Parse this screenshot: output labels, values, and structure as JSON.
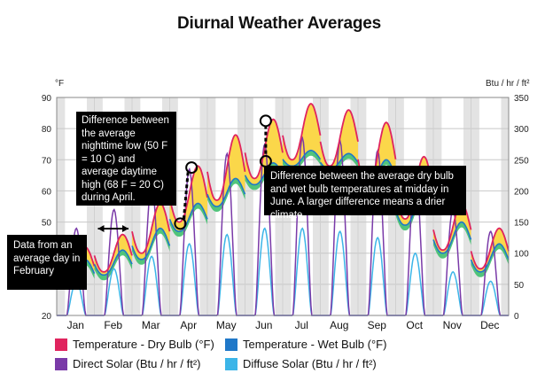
{
  "chart_data": {
    "type": "line",
    "title": "Diurnal Weather Averages",
    "ylabel_left": "°F",
    "ylabel_right": "Btu / hr / ft²",
    "ylim_left": [
      20,
      90
    ],
    "ylim_right": [
      0,
      350
    ],
    "yticks_left": [
      "20",
      "30",
      "40",
      "50",
      "60",
      "70",
      "80",
      "90"
    ],
    "yticks_right": [
      "0",
      "50",
      "100",
      "150",
      "200",
      "250",
      "300",
      "350"
    ],
    "categories": [
      "Jan",
      "Feb",
      "Mar",
      "Apr",
      "May",
      "Jun",
      "Jul",
      "Aug",
      "Sep",
      "Oct",
      "Nov",
      "Dec"
    ],
    "grid": true,
    "legend_position": "bottom",
    "series": [
      {
        "name": "Temperature - Dry Bulb (°F)",
        "color": "#e0245e",
        "axis": "left",
        "day_low": [
          31,
          34,
          40,
          50,
          57,
          64,
          70,
          68,
          61,
          51,
          41,
          35
        ],
        "day_high": [
          42,
          46,
          56,
          68,
          78,
          83,
          88,
          86,
          82,
          71,
          56,
          48
        ]
      },
      {
        "name": "Temperature - Wet Bulb (°F)",
        "color": "#1f78c8",
        "axis": "left",
        "day_low": [
          30,
          33,
          38,
          47,
          55,
          62,
          68,
          67,
          60,
          49,
          40,
          34
        ],
        "day_high": [
          38,
          41,
          48,
          56,
          64,
          69,
          73,
          72,
          70,
          60,
          50,
          43
        ]
      },
      {
        "name": "Direct Solar (Btu / hr / ft²)",
        "color": "#7a3aa8",
        "axis": "right",
        "day_peak": [
          140,
          170,
          210,
          235,
          260,
          275,
          285,
          280,
          265,
          235,
          170,
          135
        ]
      },
      {
        "name": "Diffuse Solar (Btu / hr / ft²)",
        "color": "#3cb5e8",
        "axis": "right",
        "day_peak": [
          55,
          75,
          95,
          115,
          130,
          140,
          140,
          135,
          125,
          100,
          70,
          55
        ]
      }
    ],
    "annotations": [
      "Difference between the average nighttime low (50 F = 10 C) and average daytime high (68 F = 20 C) during April.",
      "Difference between the average dry bulb and wet bulb temperatures at midday in June. A larger difference means a drier climate.",
      "Data from an average day in February"
    ]
  }
}
